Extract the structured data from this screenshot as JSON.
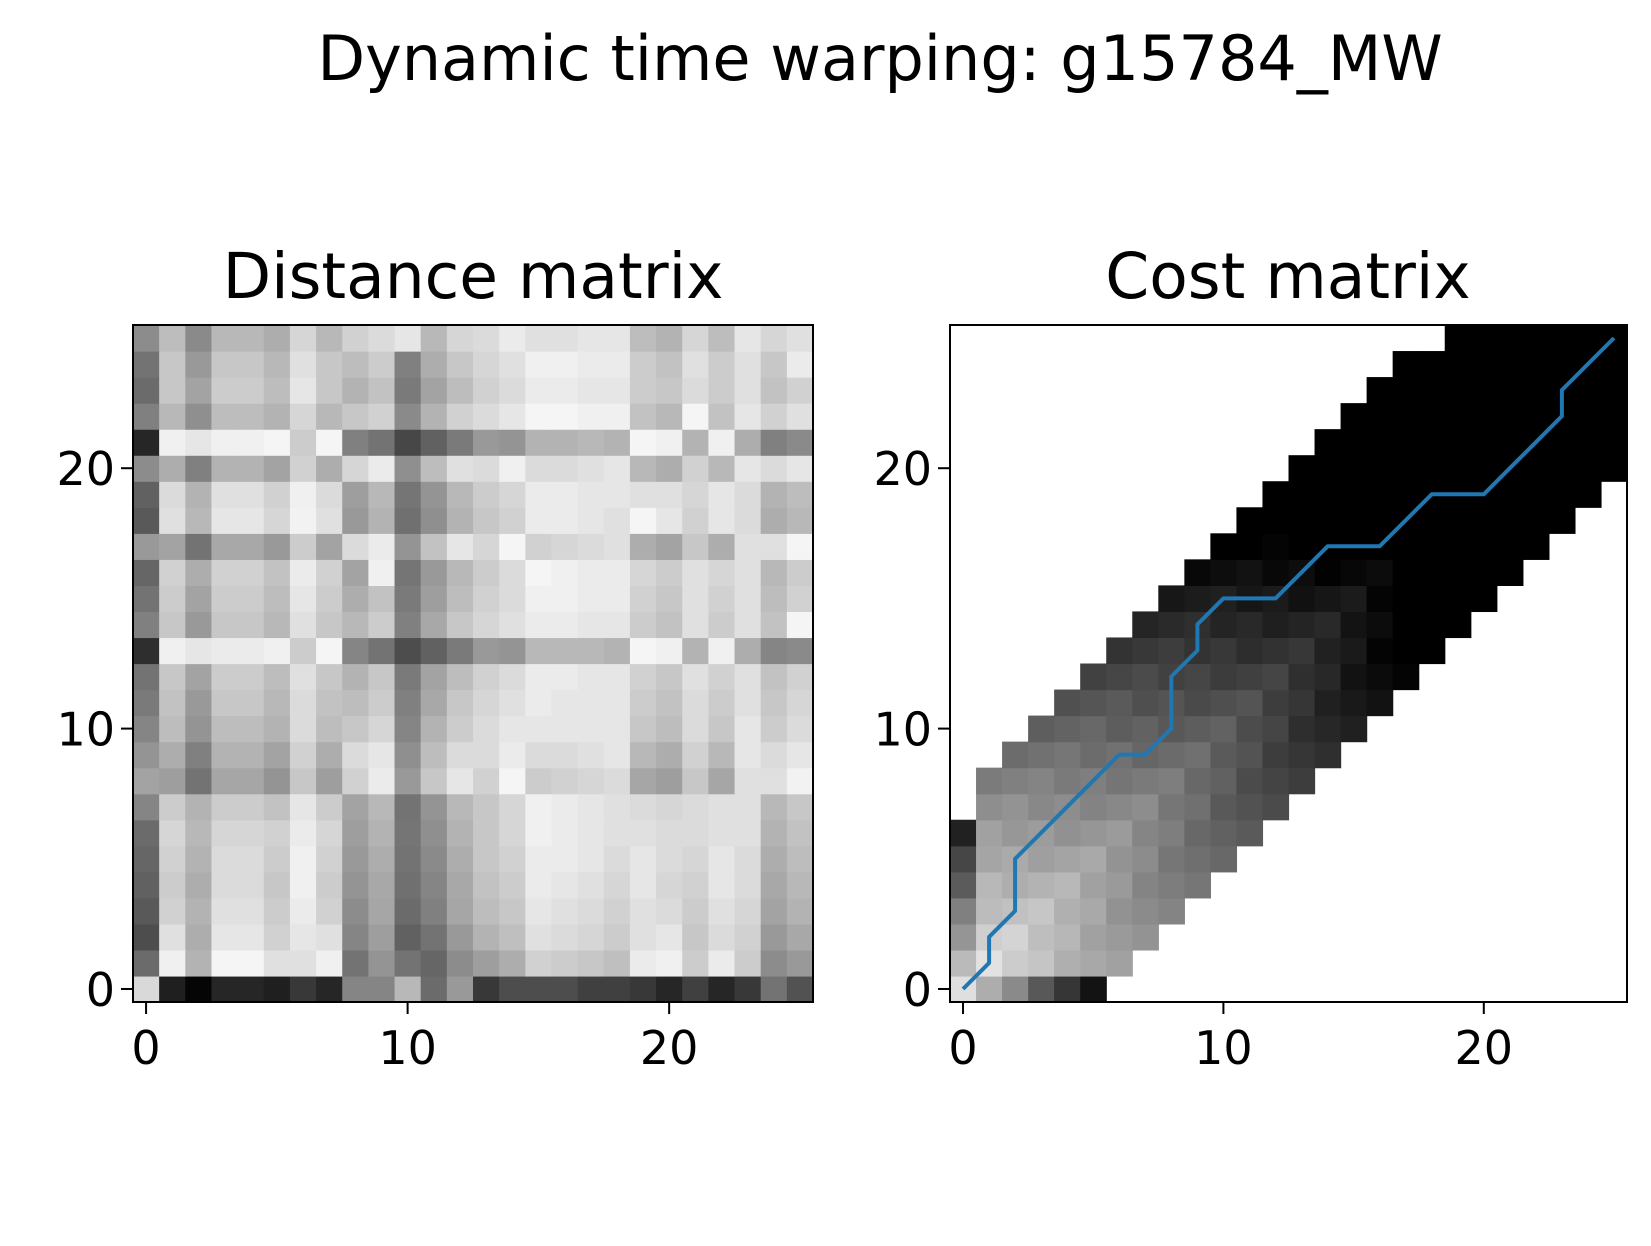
{
  "chart_data": {
    "type": "heatmap",
    "suptitle": "Dynamic time warping: g15784_MW",
    "colormap": "gray_r",
    "panels": [
      {
        "title": "Distance matrix",
        "grid_size": 26,
        "xlim": [
          -0.5,
          25.5
        ],
        "ylim": [
          -0.5,
          25.5
        ],
        "x_ticks": [
          0,
          10,
          20
        ],
        "y_ticks": [
          0,
          10,
          20
        ],
        "values": [
          [
            0.15,
            0.88,
            0.98,
            0.85,
            0.85,
            0.88,
            0.78,
            0.85,
            0.48,
            0.48,
            0.28,
            0.58,
            0.4,
            0.78,
            0.7,
            0.7,
            0.7,
            0.75,
            0.75,
            0.78,
            0.85,
            0.75,
            0.85,
            0.78,
            0.55,
            0.68
          ],
          [
            0.58,
            0.06,
            0.3,
            0.04,
            0.04,
            0.12,
            0.12,
            0.06,
            0.55,
            0.42,
            0.55,
            0.6,
            0.45,
            0.38,
            0.32,
            0.18,
            0.2,
            0.22,
            0.25,
            0.08,
            0.06,
            0.2,
            0.08,
            0.2,
            0.45,
            0.4
          ],
          [
            0.7,
            0.12,
            0.32,
            0.1,
            0.1,
            0.18,
            0.1,
            0.12,
            0.48,
            0.38,
            0.62,
            0.55,
            0.4,
            0.3,
            0.25,
            0.12,
            0.14,
            0.16,
            0.2,
            0.12,
            0.1,
            0.22,
            0.14,
            0.18,
            0.4,
            0.34
          ],
          [
            0.65,
            0.18,
            0.3,
            0.12,
            0.12,
            0.2,
            0.08,
            0.18,
            0.45,
            0.35,
            0.58,
            0.5,
            0.35,
            0.26,
            0.22,
            0.1,
            0.12,
            0.14,
            0.18,
            0.12,
            0.14,
            0.2,
            0.12,
            0.16,
            0.36,
            0.3
          ],
          [
            0.62,
            0.2,
            0.32,
            0.14,
            0.14,
            0.22,
            0.06,
            0.2,
            0.42,
            0.34,
            0.56,
            0.48,
            0.34,
            0.24,
            0.2,
            0.08,
            0.1,
            0.12,
            0.16,
            0.1,
            0.16,
            0.18,
            0.1,
            0.14,
            0.34,
            0.28
          ],
          [
            0.6,
            0.18,
            0.3,
            0.14,
            0.14,
            0.2,
            0.06,
            0.18,
            0.4,
            0.32,
            0.55,
            0.46,
            0.32,
            0.22,
            0.18,
            0.08,
            0.08,
            0.1,
            0.14,
            0.1,
            0.14,
            0.16,
            0.1,
            0.14,
            0.32,
            0.26
          ],
          [
            0.58,
            0.16,
            0.28,
            0.16,
            0.16,
            0.18,
            0.08,
            0.16,
            0.38,
            0.3,
            0.54,
            0.44,
            0.3,
            0.22,
            0.16,
            0.06,
            0.08,
            0.1,
            0.12,
            0.12,
            0.14,
            0.14,
            0.12,
            0.12,
            0.3,
            0.24
          ],
          [
            0.48,
            0.2,
            0.3,
            0.2,
            0.2,
            0.24,
            0.1,
            0.2,
            0.36,
            0.28,
            0.55,
            0.42,
            0.28,
            0.22,
            0.16,
            0.06,
            0.08,
            0.1,
            0.12,
            0.14,
            0.16,
            0.14,
            0.12,
            0.12,
            0.28,
            0.22
          ],
          [
            0.36,
            0.38,
            0.55,
            0.35,
            0.35,
            0.42,
            0.22,
            0.38,
            0.18,
            0.08,
            0.4,
            0.22,
            0.1,
            0.18,
            0.04,
            0.2,
            0.18,
            0.16,
            0.14,
            0.35,
            0.38,
            0.22,
            0.35,
            0.12,
            0.12,
            0.05
          ],
          [
            0.42,
            0.32,
            0.5,
            0.3,
            0.3,
            0.36,
            0.18,
            0.32,
            0.14,
            0.1,
            0.44,
            0.26,
            0.14,
            0.14,
            0.08,
            0.14,
            0.14,
            0.12,
            0.1,
            0.28,
            0.32,
            0.18,
            0.28,
            0.1,
            0.14,
            0.1
          ],
          [
            0.48,
            0.26,
            0.42,
            0.26,
            0.26,
            0.3,
            0.14,
            0.26,
            0.22,
            0.16,
            0.48,
            0.3,
            0.2,
            0.14,
            0.1,
            0.1,
            0.1,
            0.1,
            0.1,
            0.22,
            0.26,
            0.14,
            0.22,
            0.1,
            0.2,
            0.14
          ],
          [
            0.52,
            0.24,
            0.4,
            0.22,
            0.22,
            0.28,
            0.14,
            0.24,
            0.26,
            0.2,
            0.5,
            0.34,
            0.22,
            0.16,
            0.12,
            0.08,
            0.1,
            0.1,
            0.1,
            0.2,
            0.24,
            0.14,
            0.2,
            0.12,
            0.22,
            0.16
          ],
          [
            0.55,
            0.22,
            0.36,
            0.2,
            0.2,
            0.26,
            0.12,
            0.22,
            0.3,
            0.22,
            0.52,
            0.36,
            0.26,
            0.18,
            0.14,
            0.08,
            0.08,
            0.1,
            0.1,
            0.18,
            0.22,
            0.12,
            0.18,
            0.12,
            0.24,
            0.18
          ],
          [
            0.82,
            0.06,
            0.1,
            0.08,
            0.08,
            0.06,
            0.2,
            0.04,
            0.48,
            0.55,
            0.7,
            0.62,
            0.52,
            0.4,
            0.42,
            0.28,
            0.28,
            0.28,
            0.3,
            0.04,
            0.06,
            0.3,
            0.06,
            0.32,
            0.48,
            0.46
          ],
          [
            0.5,
            0.22,
            0.4,
            0.22,
            0.22,
            0.28,
            0.12,
            0.22,
            0.28,
            0.2,
            0.5,
            0.34,
            0.22,
            0.16,
            0.12,
            0.08,
            0.08,
            0.1,
            0.1,
            0.2,
            0.24,
            0.12,
            0.2,
            0.12,
            0.24,
            0.04
          ],
          [
            0.55,
            0.2,
            0.36,
            0.2,
            0.2,
            0.26,
            0.1,
            0.2,
            0.32,
            0.24,
            0.52,
            0.38,
            0.26,
            0.18,
            0.14,
            0.06,
            0.06,
            0.08,
            0.08,
            0.18,
            0.22,
            0.12,
            0.18,
            0.12,
            0.26,
            0.18
          ],
          [
            0.6,
            0.18,
            0.32,
            0.18,
            0.18,
            0.24,
            0.08,
            0.18,
            0.36,
            0.06,
            0.54,
            0.4,
            0.28,
            0.2,
            0.14,
            0.04,
            0.06,
            0.08,
            0.08,
            0.16,
            0.2,
            0.12,
            0.16,
            0.12,
            0.28,
            0.2
          ],
          [
            0.4,
            0.36,
            0.55,
            0.34,
            0.34,
            0.4,
            0.2,
            0.36,
            0.14,
            0.08,
            0.42,
            0.24,
            0.1,
            0.16,
            0.04,
            0.18,
            0.16,
            0.14,
            0.12,
            0.32,
            0.36,
            0.22,
            0.32,
            0.12,
            0.12,
            0.04
          ],
          [
            0.65,
            0.12,
            0.28,
            0.1,
            0.1,
            0.16,
            0.05,
            0.12,
            0.4,
            0.3,
            0.56,
            0.44,
            0.3,
            0.22,
            0.18,
            0.08,
            0.08,
            0.1,
            0.12,
            0.04,
            0.1,
            0.18,
            0.1,
            0.14,
            0.32,
            0.28
          ],
          [
            0.62,
            0.14,
            0.3,
            0.12,
            0.12,
            0.18,
            0.06,
            0.14,
            0.38,
            0.28,
            0.54,
            0.42,
            0.28,
            0.2,
            0.16,
            0.08,
            0.08,
            0.1,
            0.1,
            0.12,
            0.12,
            0.16,
            0.1,
            0.14,
            0.3,
            0.26
          ],
          [
            0.45,
            0.32,
            0.5,
            0.3,
            0.3,
            0.36,
            0.18,
            0.32,
            0.16,
            0.08,
            0.44,
            0.26,
            0.12,
            0.14,
            0.06,
            0.14,
            0.14,
            0.12,
            0.1,
            0.28,
            0.32,
            0.18,
            0.28,
            0.1,
            0.14,
            0.1
          ],
          [
            0.85,
            0.06,
            0.1,
            0.06,
            0.06,
            0.04,
            0.2,
            0.04,
            0.5,
            0.55,
            0.72,
            0.62,
            0.52,
            0.4,
            0.42,
            0.3,
            0.3,
            0.28,
            0.3,
            0.04,
            0.06,
            0.3,
            0.06,
            0.32,
            0.5,
            0.46
          ],
          [
            0.5,
            0.28,
            0.44,
            0.26,
            0.26,
            0.3,
            0.16,
            0.28,
            0.22,
            0.18,
            0.46,
            0.3,
            0.18,
            0.14,
            0.1,
            0.04,
            0.04,
            0.06,
            0.06,
            0.24,
            0.28,
            0.04,
            0.24,
            0.1,
            0.18,
            0.12
          ],
          [
            0.58,
            0.22,
            0.36,
            0.2,
            0.2,
            0.26,
            0.1,
            0.22,
            0.3,
            0.24,
            0.52,
            0.36,
            0.26,
            0.18,
            0.14,
            0.08,
            0.08,
            0.1,
            0.1,
            0.2,
            0.22,
            0.14,
            0.2,
            0.12,
            0.24,
            0.18
          ],
          [
            0.55,
            0.22,
            0.4,
            0.22,
            0.22,
            0.28,
            0.12,
            0.22,
            0.26,
            0.2,
            0.5,
            0.32,
            0.22,
            0.16,
            0.12,
            0.06,
            0.06,
            0.08,
            0.08,
            0.2,
            0.24,
            0.12,
            0.2,
            0.12,
            0.22,
            0.08
          ],
          [
            0.45,
            0.26,
            0.46,
            0.28,
            0.28,
            0.32,
            0.16,
            0.28,
            0.18,
            0.14,
            0.1,
            0.28,
            0.16,
            0.14,
            0.08,
            0.12,
            0.12,
            0.1,
            0.1,
            0.26,
            0.3,
            0.16,
            0.26,
            0.1,
            0.16,
            0.12
          ]
        ]
      },
      {
        "title": "Cost matrix",
        "grid_size": 26,
        "xlim": [
          -0.5,
          25.5
        ],
        "ylim": [
          -0.5,
          25.5
        ],
        "x_ticks": [
          0,
          10,
          20
        ],
        "y_ticks": [
          0,
          10,
          20
        ],
        "band": {
          "left": [
            0,
            0,
            0,
            0,
            0,
            0,
            0,
            1,
            1,
            2,
            3,
            4,
            5,
            6,
            7,
            8,
            9,
            10,
            11,
            12,
            13,
            14,
            15,
            16,
            17,
            19
          ],
          "right": [
            5,
            6,
            7,
            8,
            9,
            10,
            11,
            12,
            13,
            14,
            15,
            16,
            17,
            18,
            19,
            20,
            21,
            22,
            23,
            24,
            25,
            25,
            25,
            25,
            25,
            25
          ]
        },
        "warping_path_x": [
          0,
          1,
          1,
          2,
          2,
          3,
          4,
          5,
          6,
          7,
          8,
          8,
          9,
          9,
          10,
          11,
          12,
          13,
          14,
          15,
          16,
          17,
          18,
          19,
          20,
          21,
          22,
          23,
          23,
          24,
          25
        ],
        "warping_path_y": [
          0,
          1,
          2,
          3,
          5,
          6,
          7,
          8,
          9,
          9,
          10,
          12,
          13,
          14,
          15,
          15,
          15,
          16,
          17,
          17,
          17,
          18,
          19,
          19,
          19,
          20,
          21,
          22,
          23,
          24,
          25
        ]
      }
    ]
  },
  "colors": {
    "path": "#1f77b4",
    "axis": "#000000",
    "background": "#ffffff"
  }
}
